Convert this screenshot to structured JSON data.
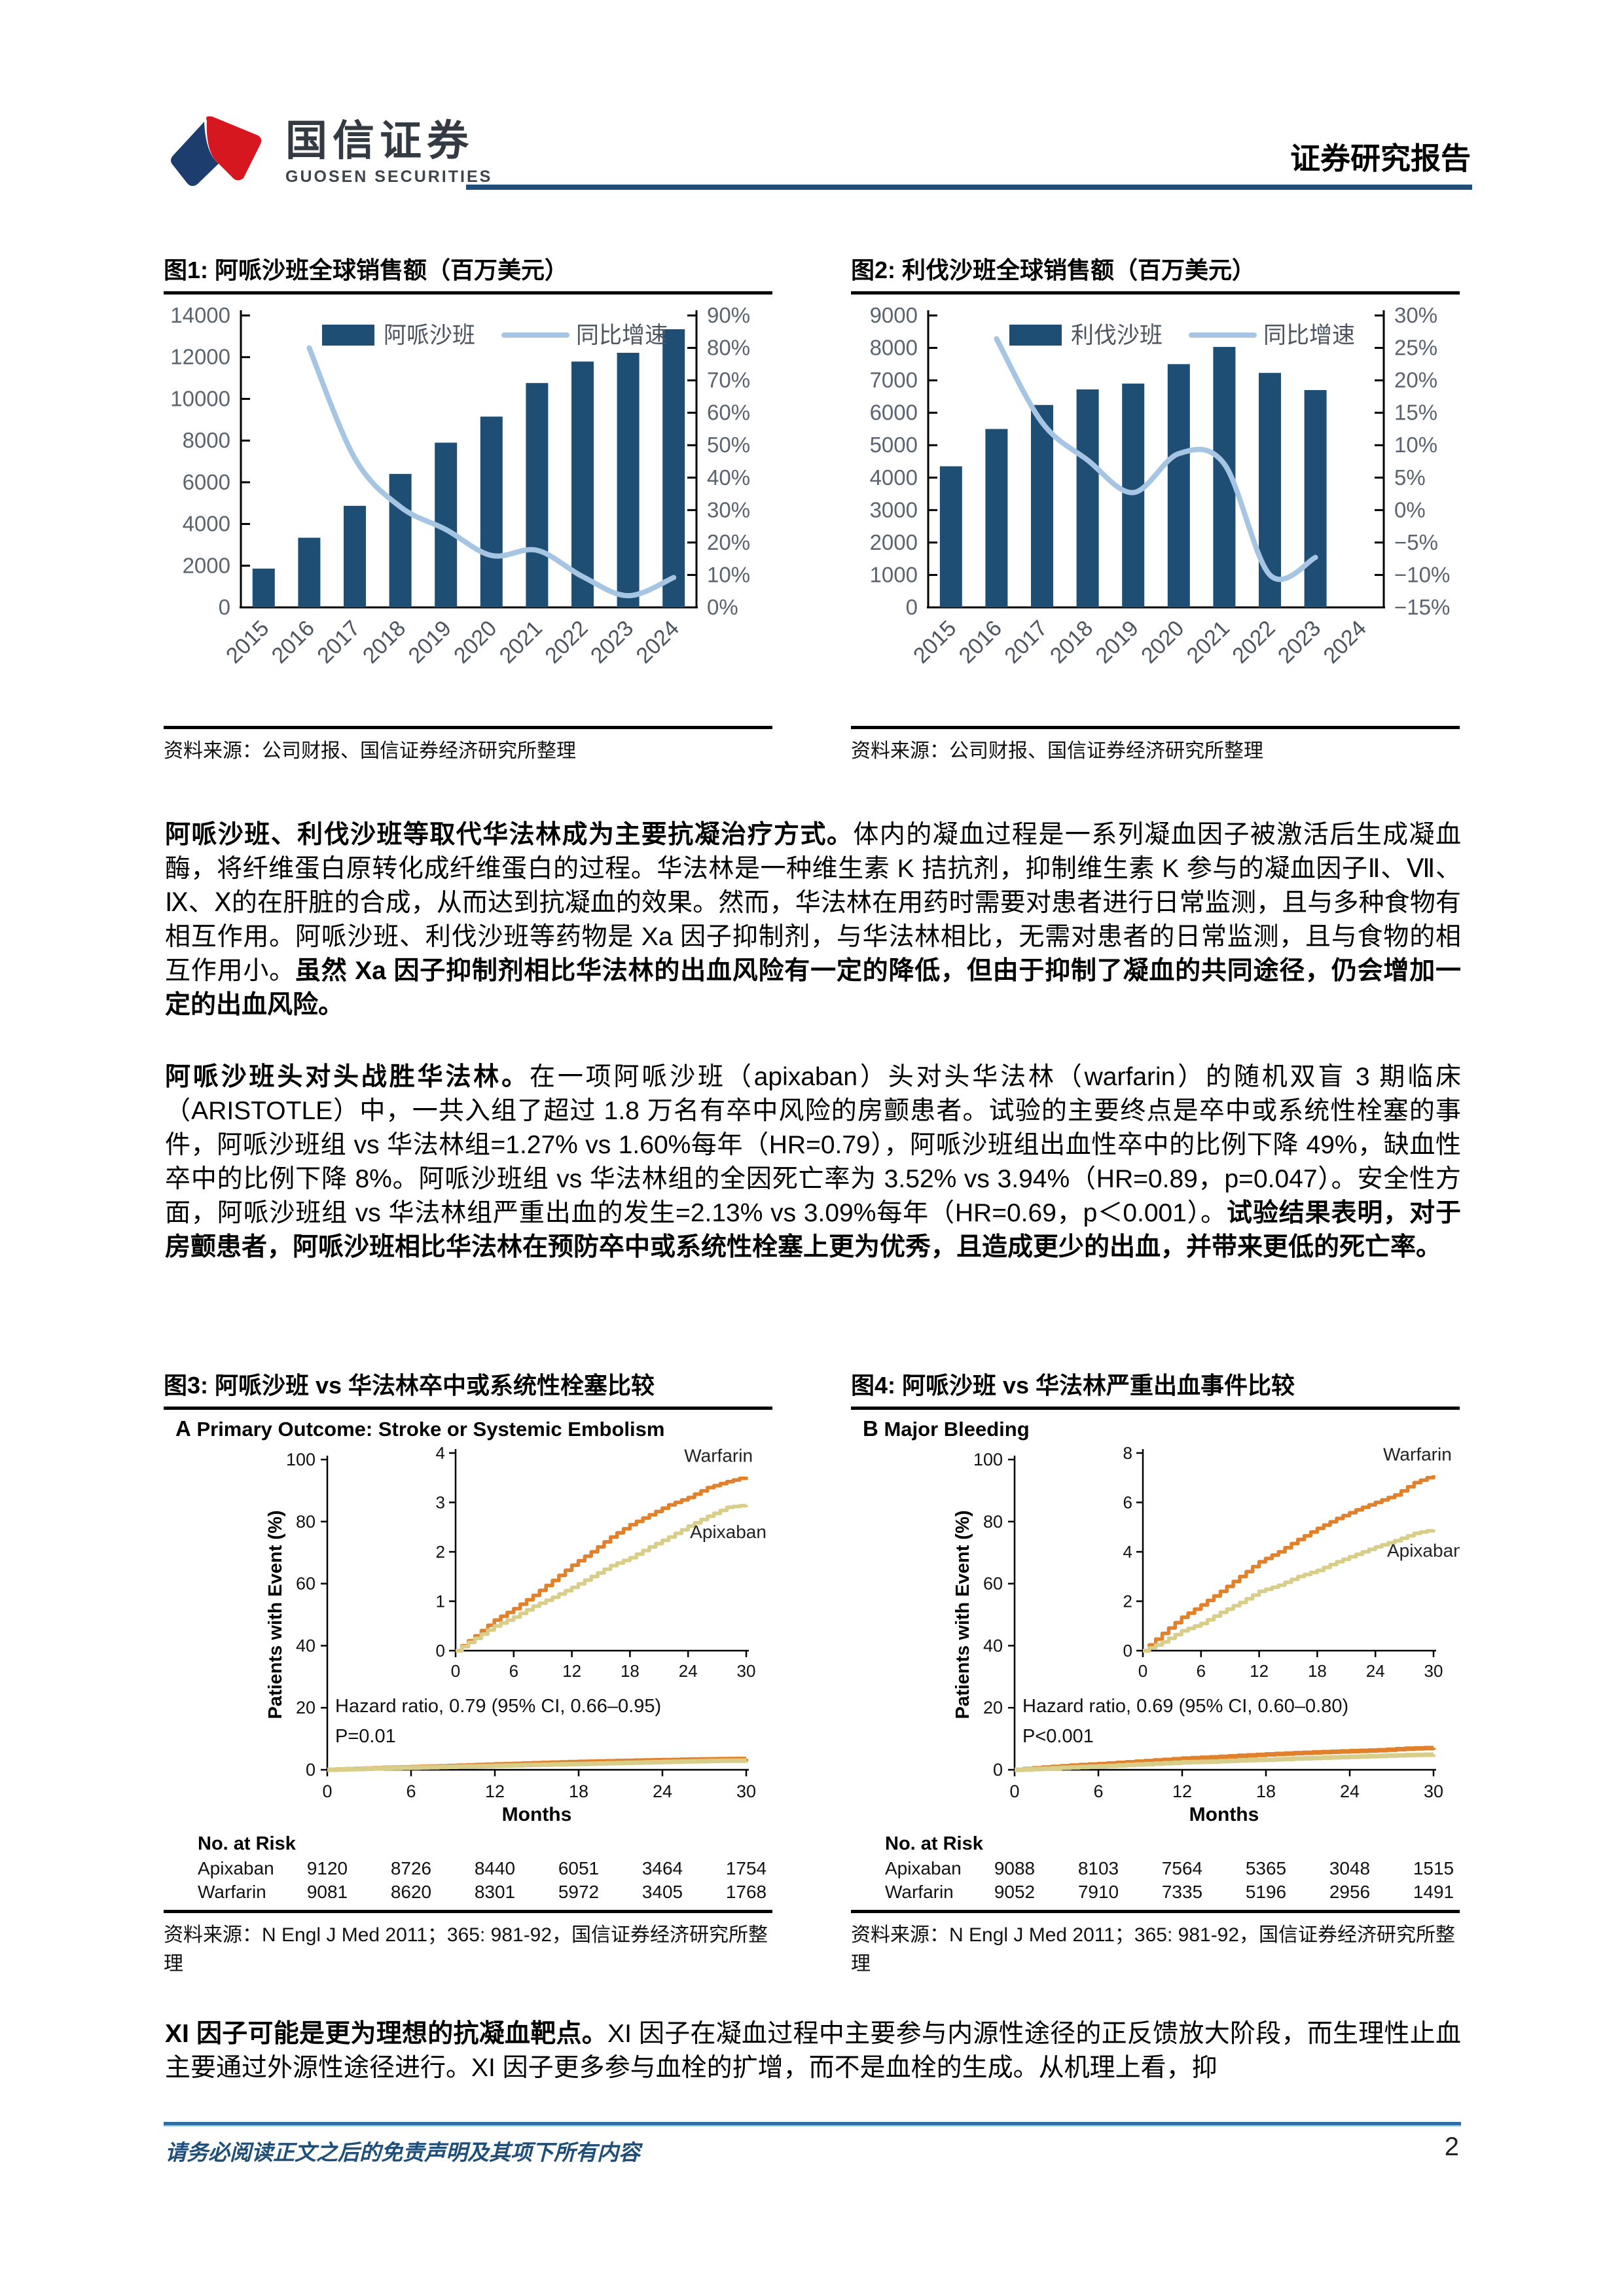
{
  "brand": {
    "name_cn": "国信证券",
    "name_en": "GUOSEN SECURITIES",
    "accent_navy": "#1f4e79",
    "logo_red": "#d7171f",
    "logo_blue": "#1d3d6e"
  },
  "page": {
    "report_type": "证券研究报告",
    "footer_disclaimer": "请务必阅读正文之后的免责声明及其项下所有内容",
    "page_number": "2"
  },
  "paragraphs": [
    {
      "runs": [
        {
          "bold": true,
          "text": "阿哌沙班、利伐沙班等取代华法林成为主要抗凝治疗方式。"
        },
        {
          "bold": false,
          "text": "体内的凝血过程是一系列凝血因子被激活后生成凝血酶，将纤维蛋白原转化成纤维蛋白的过程。华法林是一种维生素 K 拮抗剂，抑制维生素 K 参与的凝血因子Ⅱ、Ⅶ、Ⅸ、Ⅹ的在肝脏的合成，从而达到抗凝血的效果。然而，华法林在用药时需要对患者进行日常监测，且与多种食物有相互作用。阿哌沙班、利伐沙班等药物是 Xa 因子抑制剂，与华法林相比，无需对患者的日常监测，且与食物的相互作用小。"
        },
        {
          "bold": true,
          "text": "虽然 Xa 因子抑制剂相比华法林的出血风险有一定的降低，但由于抑制了凝血的共同途径，仍会增加一定的出血风险。"
        }
      ]
    },
    {
      "runs": [
        {
          "bold": true,
          "text": "阿哌沙班头对头战胜华法林。"
        },
        {
          "bold": false,
          "text": "在一项阿哌沙班（apixaban）头对头华法林（warfarin）的随机双盲 3 期临床（ARISTOTLE）中，一共入组了超过 1.8 万名有卒中风险的房颤患者。试验的主要终点是卒中或系统性栓塞的事件，阿哌沙班组 vs 华法林组=1.27% vs 1.60%每年（HR=0.79），阿哌沙班组出血性卒中的比例下降 49%，缺血性卒中的比例下降 8%。阿哌沙班组 vs 华法林组的全因死亡率为 3.52% vs 3.94%（HR=0.89，p=0.047）。安全性方面，阿哌沙班组 vs 华法林组严重出血的发生=2.13% vs 3.09%每年（HR=0.69，p＜0.001）。"
        },
        {
          "bold": true,
          "text": "试验结果表明，对于房颤患者，阿哌沙班相比华法林在预防卒中或系统性栓塞上更为优秀，且造成更少的出血，并带来更低的死亡率。"
        }
      ]
    },
    {
      "runs": [
        {
          "bold": true,
          "text": "XI 因子可能是更为理想的抗凝血靶点。"
        },
        {
          "bold": false,
          "text": "XI 因子在凝血过程中主要参与内源性途径的正反馈放大阶段，而生理性止血主要通过外源性途径进行。XI 因子更多参与血栓的扩增，而不是血栓的生成。从机理上看，抑"
        }
      ]
    }
  ],
  "chart_data": [
    {
      "id": "fig1",
      "type": "barline",
      "title": "图1: 阿哌沙班全球销售额（百万美元）",
      "source": "资料来源：公司财报、国信证券经济研究所整理",
      "categories": [
        "2015",
        "2016",
        "2017",
        "2018",
        "2019",
        "2020",
        "2021",
        "2022",
        "2023",
        "2024"
      ],
      "bar": {
        "name": "阿哌沙班",
        "color": "#1f4e74",
        "values": [
          1860,
          3340,
          4870,
          6400,
          7900,
          9150,
          10760,
          11790,
          12210,
          13340
        ]
      },
      "line": {
        "name": "同比增速",
        "color": "#a6c5e3",
        "values": [
          null,
          80,
          46,
          31,
          24,
          16,
          17.6,
          9.5,
          3.6,
          9.2
        ]
      },
      "left_axis": {
        "min": 0,
        "max": 14000,
        "step": 2000
      },
      "right_axis": {
        "min": 0,
        "max": 90,
        "step": 10,
        "suffix": "%"
      }
    },
    {
      "id": "fig2",
      "type": "barline",
      "title": "图2: 利伐沙班全球销售额（百万美元）",
      "source": "资料来源：公司财报、国信证券经济研究所整理",
      "categories": [
        "2015",
        "2016",
        "2017",
        "2018",
        "2019",
        "2020",
        "2021",
        "2022",
        "2023",
        "2024"
      ],
      "bar": {
        "name": "利伐沙班",
        "color": "#1f4e74",
        "values": [
          4350,
          5500,
          6240,
          6720,
          6900,
          7500,
          8030,
          7230,
          6700,
          null
        ]
      },
      "line": {
        "name": "同比增速",
        "color": "#a6c5e3",
        "values": [
          null,
          26.4,
          13.5,
          7.7,
          2.7,
          8.7,
          7.1,
          -10,
          -7.3,
          null
        ]
      },
      "left_axis": {
        "min": 0,
        "max": 9000,
        "step": 1000
      },
      "right_axis": {
        "min": -15,
        "max": 30,
        "step": 5,
        "suffix": "%"
      }
    },
    {
      "id": "fig3",
      "type": "km",
      "title": "图3: 阿哌沙班 vs 华法林卒中或系统性栓塞比较",
      "source": "资料来源：N Engl J Med 2011；365: 981-92，国信证券经济研究所整理",
      "panel": "A",
      "panel_title": "Primary Outcome: Stroke or Systemic Embolism",
      "ylabel": "Patients with Event (%)",
      "xlabel": "Months",
      "xticks": [
        0,
        6,
        12,
        18,
        24,
        30
      ],
      "main_yticks": [
        0,
        20,
        40,
        60,
        80,
        100
      ],
      "main_ymax": 100,
      "inset_yticks": [
        0,
        1,
        2,
        3,
        4
      ],
      "inset_ymax": 4,
      "hazard": [
        "Hazard ratio, 0.79 (95% CI, 0.66–0.95)",
        "P=0.01"
      ],
      "series": [
        {
          "name": "Warfarin",
          "color": "#e1812b",
          "label_at": [
            23.6,
            3.82
          ],
          "points": [
            [
              0,
              0
            ],
            [
              2,
              0.3
            ],
            [
              4,
              0.62
            ],
            [
              6,
              0.85
            ],
            [
              8,
              1.12
            ],
            [
              10,
              1.42
            ],
            [
              12,
              1.73
            ],
            [
              14,
              2.0
            ],
            [
              16,
              2.3
            ],
            [
              18,
              2.55
            ],
            [
              20,
              2.75
            ],
            [
              22,
              2.95
            ],
            [
              24,
              3.1
            ],
            [
              26,
              3.3
            ],
            [
              28,
              3.42
            ],
            [
              30,
              3.52
            ]
          ]
        },
        {
          "name": "Apixaban",
          "color": "#d9cd8a",
          "label_at": [
            24.2,
            2.28
          ],
          "points": [
            [
              0,
              0
            ],
            [
              2,
              0.25
            ],
            [
              4,
              0.5
            ],
            [
              6,
              0.68
            ],
            [
              8,
              0.9
            ],
            [
              10,
              1.08
            ],
            [
              12,
              1.28
            ],
            [
              14,
              1.5
            ],
            [
              16,
              1.72
            ],
            [
              18,
              1.88
            ],
            [
              20,
              2.1
            ],
            [
              22,
              2.3
            ],
            [
              24,
              2.52
            ],
            [
              26,
              2.72
            ],
            [
              28,
              2.9
            ],
            [
              30,
              2.95
            ]
          ]
        }
      ],
      "at_risk": {
        "header": "No. at Risk",
        "rows": [
          {
            "name": "Apixaban",
            "values": [
              "9120",
              "8726",
              "8440",
              "6051",
              "3464",
              "1754"
            ]
          },
          {
            "name": "Warfarin",
            "values": [
              "9081",
              "8620",
              "8301",
              "5972",
              "3405",
              "1768"
            ]
          }
        ]
      }
    },
    {
      "id": "fig4",
      "type": "km",
      "title": "图4: 阿哌沙班 vs 华法林严重出血事件比较",
      "source": "资料来源：N Engl J Med 2011；365: 981-92，国信证券经济研究所整理",
      "panel": "B",
      "panel_title": "Major Bleeding",
      "ylabel": "Patients with Event (%)",
      "xlabel": "Months",
      "xticks": [
        0,
        6,
        12,
        18,
        24,
        30
      ],
      "main_yticks": [
        0,
        20,
        40,
        60,
        80,
        100
      ],
      "main_ymax": 100,
      "inset_yticks": [
        0,
        2,
        4,
        6,
        8
      ],
      "inset_ymax": 8,
      "hazard": [
        "Hazard ratio, 0.69 (95% CI, 0.60–0.80)",
        "P<0.001"
      ],
      "series": [
        {
          "name": "Warfarin",
          "color": "#e1812b",
          "label_at": [
            24.8,
            7.7
          ],
          "points": [
            [
              0,
              0
            ],
            [
              2,
              0.7
            ],
            [
              4,
              1.35
            ],
            [
              6,
              1.85
            ],
            [
              8,
              2.4
            ],
            [
              10,
              3.0
            ],
            [
              12,
              3.6
            ],
            [
              14,
              4.0
            ],
            [
              16,
              4.5
            ],
            [
              18,
              4.95
            ],
            [
              20,
              5.35
            ],
            [
              22,
              5.7
            ],
            [
              24,
              6.0
            ],
            [
              26,
              6.3
            ],
            [
              28,
              6.8
            ],
            [
              30,
              7.1
            ]
          ]
        },
        {
          "name": "Apixaban",
          "color": "#d9cd8a",
          "label_at": [
            25.2,
            3.8
          ],
          "points": [
            [
              0,
              0
            ],
            [
              2,
              0.35
            ],
            [
              4,
              0.8
            ],
            [
              6,
              1.1
            ],
            [
              8,
              1.55
            ],
            [
              10,
              1.95
            ],
            [
              12,
              2.4
            ],
            [
              14,
              2.65
            ],
            [
              16,
              3.0
            ],
            [
              18,
              3.25
            ],
            [
              20,
              3.6
            ],
            [
              22,
              3.9
            ],
            [
              24,
              4.2
            ],
            [
              26,
              4.45
            ],
            [
              28,
              4.75
            ],
            [
              30,
              4.9
            ]
          ]
        }
      ],
      "at_risk": {
        "header": "No. at Risk",
        "rows": [
          {
            "name": "Apixaban",
            "values": [
              "9088",
              "8103",
              "7564",
              "5365",
              "3048",
              "1515"
            ]
          },
          {
            "name": "Warfarin",
            "values": [
              "9052",
              "7910",
              "7335",
              "5196",
              "2956",
              "1491"
            ]
          }
        ]
      }
    }
  ]
}
